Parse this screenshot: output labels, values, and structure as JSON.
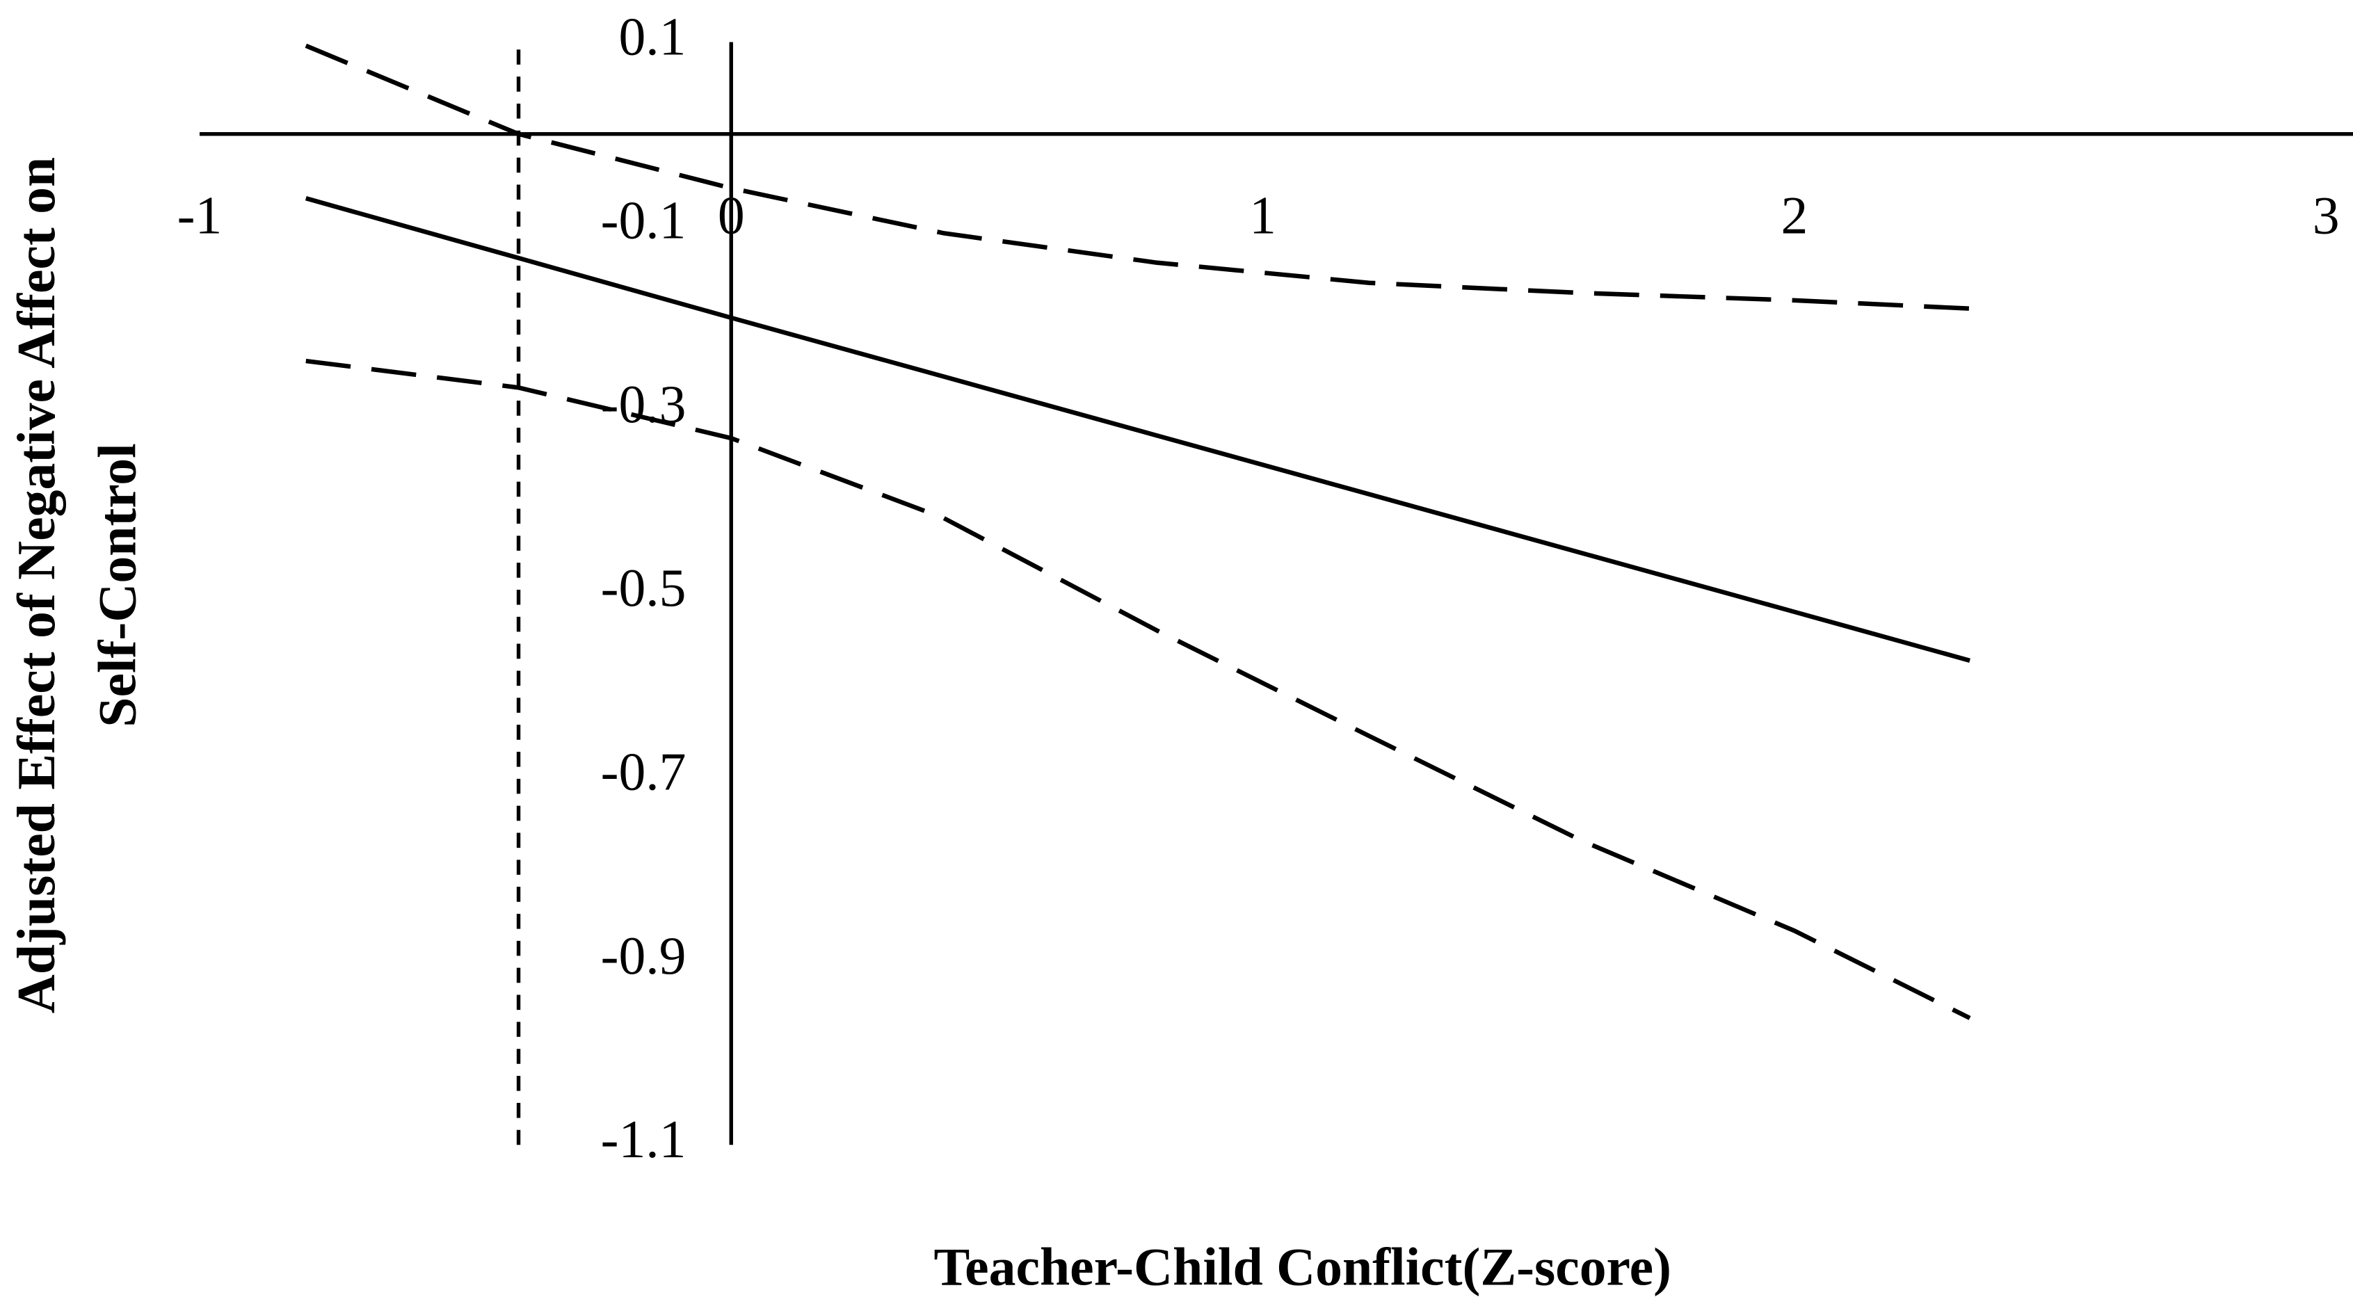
{
  "chart_data": {
    "type": "line",
    "x_label": "Teacher-Child Conflict(Z-score)",
    "y_label": [
      "Adjusted Effect of Negative Affect on",
      "Self-Control"
    ],
    "x": [
      -0.8,
      -0.4,
      0,
      0.4,
      0.8,
      1.2,
      1.6,
      2.0,
      2.33
    ],
    "series": [
      {
        "color": "#000000",
        "dashed": false,
        "values": [
          -0.07,
          -0.135,
          -0.2,
          -0.264,
          -0.328,
          -0.392,
          -0.456,
          -0.52,
          -0.573
        ]
      },
      {
        "color": "#000000",
        "dashed": true,
        "values": [
          0.096,
          0,
          -0.059,
          -0.108,
          -0.14,
          -0.162,
          -0.173,
          -0.181,
          -0.19
        ]
      },
      {
        "color": "#000000",
        "dashed": true,
        "values": [
          -0.247,
          -0.276,
          -0.331,
          -0.418,
          -0.54,
          -0.655,
          -0.769,
          -0.867,
          -0.962
        ]
      }
    ],
    "reference_x": -0.4,
    "xlim": [
      -1,
      3
    ],
    "xticks": [
      -1,
      0,
      1,
      2,
      3
    ],
    "ylim": [
      -1.1,
      0.1
    ],
    "yticks": [
      0.1,
      -0.1,
      -0.3,
      -0.5,
      -0.7,
      -0.9,
      -1.1
    ],
    "grid": false
  }
}
